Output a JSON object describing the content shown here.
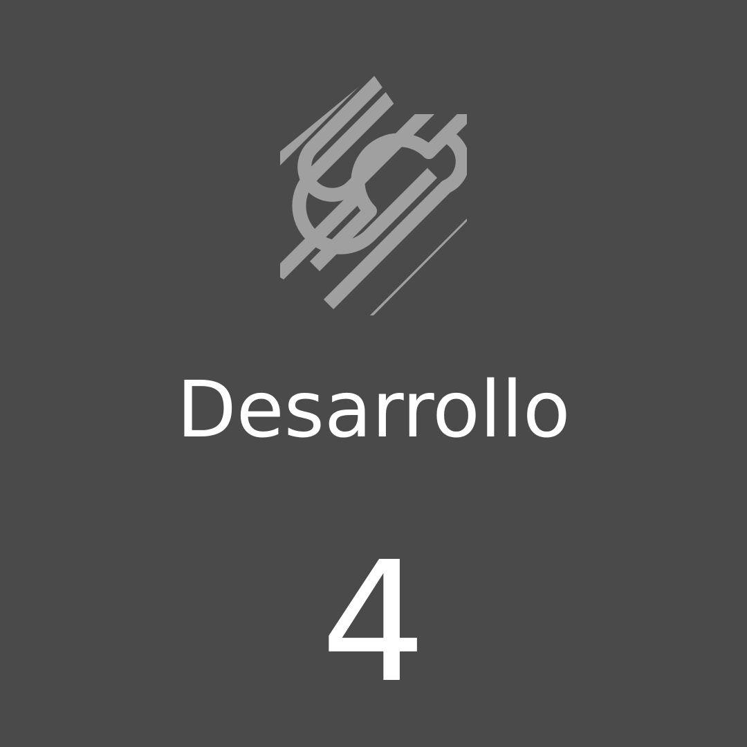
{
  "tile": {
    "title": "Desarrollo",
    "count": "4",
    "icon": "squarespace-logo-icon",
    "colors": {
      "background": "#4a4a4a",
      "logo": "#a0a0a0",
      "text": "#ffffff"
    }
  }
}
